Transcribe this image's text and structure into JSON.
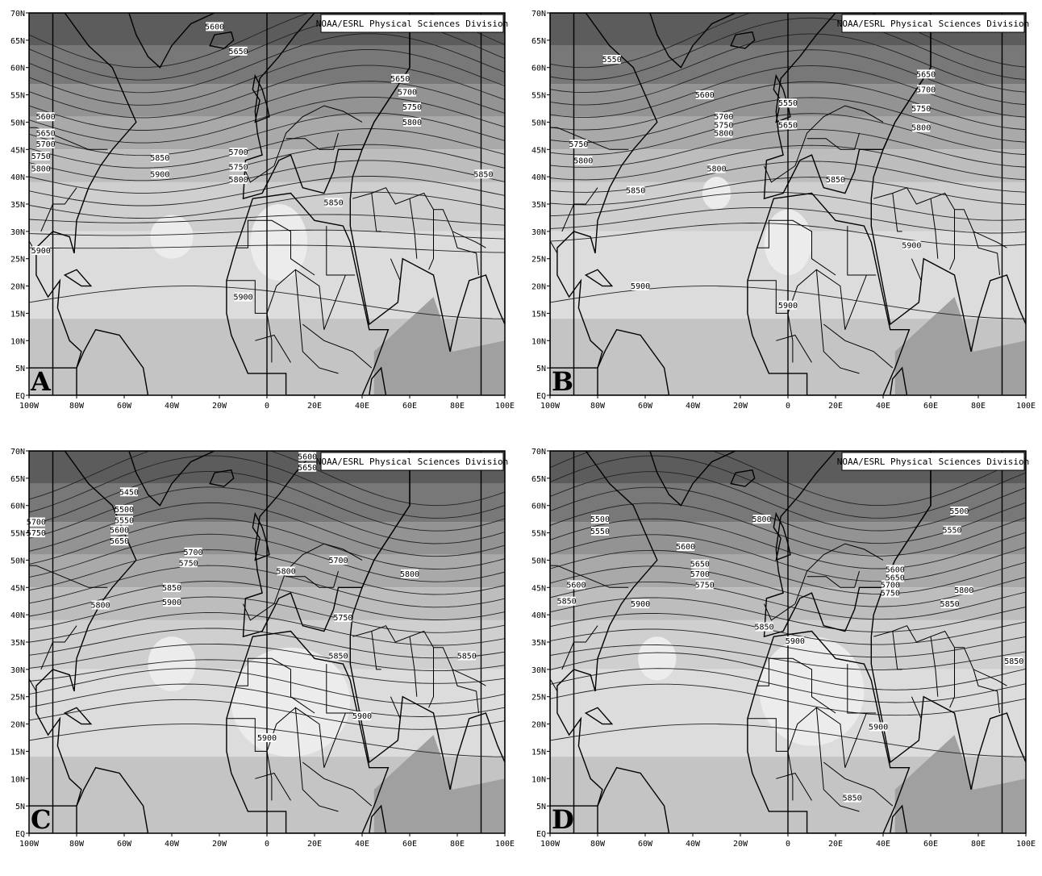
{
  "credit": "NOAA/ESRL Physical Sciences Division",
  "lat_ticks": [
    "70N",
    "65N",
    "60N",
    "55N",
    "50N",
    "45N",
    "40N",
    "35N",
    "30N",
    "25N",
    "20N",
    "15N",
    "10N",
    "5N",
    "EQ"
  ],
  "lon_ticks": [
    "100W",
    "80W",
    "60W",
    "40W",
    "20W",
    "0",
    "20E",
    "40E",
    "60E",
    "80E",
    "100E"
  ],
  "panels": [
    {
      "letter": "A",
      "contours": [
        {
          "text": "5600",
          "lon": -22,
          "lat": 67.5
        },
        {
          "text": "5650",
          "lon": -12,
          "lat": 63
        },
        {
          "text": "5650",
          "lon": 56,
          "lat": 58
        },
        {
          "text": "5700",
          "lon": 59,
          "lat": 55.5
        },
        {
          "text": "5750",
          "lon": 61,
          "lat": 52.8
        },
        {
          "text": "5800",
          "lon": 61,
          "lat": 50
        },
        {
          "text": "5600",
          "lon": -93,
          "lat": 51
        },
        {
          "text": "5650",
          "lon": -93,
          "lat": 48
        },
        {
          "text": "5700",
          "lon": -93,
          "lat": 46
        },
        {
          "text": "5750",
          "lon": -95,
          "lat": 43.8
        },
        {
          "text": "5800",
          "lon": -95,
          "lat": 41.5
        },
        {
          "text": "5850",
          "lon": -45,
          "lat": 43.5
        },
        {
          "text": "5900",
          "lon": -45,
          "lat": 40.5
        },
        {
          "text": "5700",
          "lon": -12,
          "lat": 44.5
        },
        {
          "text": "5750",
          "lon": -12,
          "lat": 41.8
        },
        {
          "text": "5800",
          "lon": -12,
          "lat": 39.5
        },
        {
          "text": "5850",
          "lon": 28,
          "lat": 35.3
        },
        {
          "text": "5850",
          "lon": 91,
          "lat": 40.5
        },
        {
          "text": "5900",
          "lon": -95,
          "lat": 26.5
        },
        {
          "text": "5900",
          "lon": -10,
          "lat": 18
        }
      ]
    },
    {
      "letter": "B",
      "contours": [
        {
          "text": "5550",
          "lon": -74,
          "lat": 61.5
        },
        {
          "text": "5600",
          "lon": -35,
          "lat": 55
        },
        {
          "text": "5700",
          "lon": -27,
          "lat": 51
        },
        {
          "text": "5750",
          "lon": -27,
          "lat": 49.5
        },
        {
          "text": "5800",
          "lon": -27,
          "lat": 48
        },
        {
          "text": "5550",
          "lon": 0,
          "lat": 53.5
        },
        {
          "text": "5650",
          "lon": 0,
          "lat": 49.5
        },
        {
          "text": "5650",
          "lon": 58,
          "lat": 58.8
        },
        {
          "text": "5700",
          "lon": 58,
          "lat": 56
        },
        {
          "text": "5750",
          "lon": 56,
          "lat": 52.5
        },
        {
          "text": "5800",
          "lon": 56,
          "lat": 49
        },
        {
          "text": "5750",
          "lon": -88,
          "lat": 46
        },
        {
          "text": "5800",
          "lon": -86,
          "lat": 43
        },
        {
          "text": "5800",
          "lon": -30,
          "lat": 41.5
        },
        {
          "text": "5850",
          "lon": -64,
          "lat": 37.5
        },
        {
          "text": "5850",
          "lon": 20,
          "lat": 39.5
        },
        {
          "text": "5900",
          "lon": -62,
          "lat": 20
        },
        {
          "text": "5900",
          "lon": 0,
          "lat": 16.5
        },
        {
          "text": "5900",
          "lon": 52,
          "lat": 27.5
        }
      ]
    },
    {
      "letter": "C",
      "contours": [
        {
          "text": "5600",
          "lon": 17,
          "lat": 69
        },
        {
          "text": "5650",
          "lon": 17,
          "lat": 67
        },
        {
          "text": "5450",
          "lon": -58,
          "lat": 62.5
        },
        {
          "text": "5500",
          "lon": -60,
          "lat": 59.3
        },
        {
          "text": "5550",
          "lon": -60,
          "lat": 57.3
        },
        {
          "text": "5600",
          "lon": -62,
          "lat": 55.5
        },
        {
          "text": "5650",
          "lon": -62,
          "lat": 53.5
        },
        {
          "text": "5700",
          "lon": -97,
          "lat": 57
        },
        {
          "text": "5750",
          "lon": -97,
          "lat": 55
        },
        {
          "text": "5700",
          "lon": -31,
          "lat": 51.5
        },
        {
          "text": "5750",
          "lon": -33,
          "lat": 49.5
        },
        {
          "text": "5800",
          "lon": 8,
          "lat": 48
        },
        {
          "text": "5700",
          "lon": 30,
          "lat": 50
        },
        {
          "text": "5800",
          "lon": 60,
          "lat": 47.5
        },
        {
          "text": "5800",
          "lon": -70,
          "lat": 41.8
        },
        {
          "text": "5850",
          "lon": -40,
          "lat": 45
        },
        {
          "text": "5900",
          "lon": -40,
          "lat": 42.3
        },
        {
          "text": "5750",
          "lon": 32,
          "lat": 39.5
        },
        {
          "text": "5850",
          "lon": 30,
          "lat": 32.5
        },
        {
          "text": "5850",
          "lon": 84,
          "lat": 32.5
        },
        {
          "text": "5900",
          "lon": 40,
          "lat": 21.5
        },
        {
          "text": "5900",
          "lon": 0,
          "lat": 17.5
        }
      ]
    },
    {
      "letter": "D",
      "contours": [
        {
          "text": "5500",
          "lon": -79,
          "lat": 57.5
        },
        {
          "text": "5550",
          "lon": -79,
          "lat": 55.3
        },
        {
          "text": "5500",
          "lon": 72,
          "lat": 59
        },
        {
          "text": "5550",
          "lon": 69,
          "lat": 55.5
        },
        {
          "text": "5600",
          "lon": -43,
          "lat": 52.5
        },
        {
          "text": "5650",
          "lon": -37,
          "lat": 49.3
        },
        {
          "text": "5700",
          "lon": -37,
          "lat": 47.5
        },
        {
          "text": "5750",
          "lon": -35,
          "lat": 45.5
        },
        {
          "text": "5800",
          "lon": -11,
          "lat": 57.5
        },
        {
          "text": "5600",
          "lon": 45,
          "lat": 48.3
        },
        {
          "text": "5650",
          "lon": 45,
          "lat": 46.8
        },
        {
          "text": "5700",
          "lon": 43,
          "lat": 45.5
        },
        {
          "text": "5750",
          "lon": 43,
          "lat": 44
        },
        {
          "text": "5800",
          "lon": 74,
          "lat": 44.5
        },
        {
          "text": "5850",
          "lon": 68,
          "lat": 42
        },
        {
          "text": "5600",
          "lon": -89,
          "lat": 45.5
        },
        {
          "text": "5850",
          "lon": -93,
          "lat": 42.5
        },
        {
          "text": "5900",
          "lon": -62,
          "lat": 42
        },
        {
          "text": "5850",
          "lon": -10,
          "lat": 37.8
        },
        {
          "text": "5900",
          "lon": 3,
          "lat": 35.2
        },
        {
          "text": "5850",
          "lon": 95,
          "lat": 31.5
        },
        {
          "text": "5900",
          "lon": 38,
          "lat": 19.5
        },
        {
          "text": "5850",
          "lon": 27,
          "lat": 6.5
        }
      ]
    }
  ]
}
